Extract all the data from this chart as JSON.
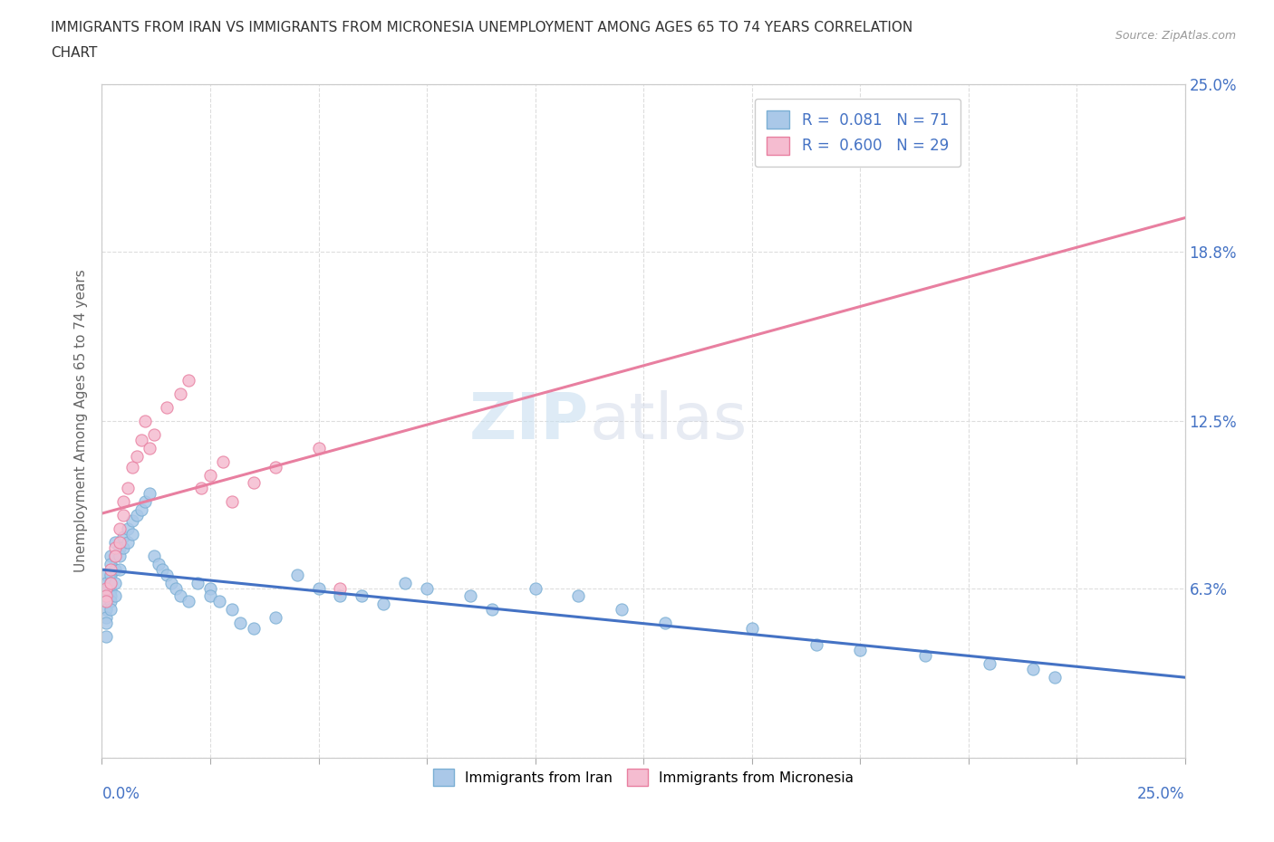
{
  "title": "IMMIGRANTS FROM IRAN VS IMMIGRANTS FROM MICRONESIA UNEMPLOYMENT AMONG AGES 65 TO 74 YEARS CORRELATION\nCHART",
  "source_text": "Source: ZipAtlas.com",
  "ylabel": "Unemployment Among Ages 65 to 74 years",
  "xmin": 0.0,
  "xmax": 0.25,
  "ymin": 0.0,
  "ymax": 0.25,
  "ytick_vals": [
    0.0,
    0.063,
    0.125,
    0.188,
    0.25
  ],
  "ytick_labels_right": [
    "",
    "6.3%",
    "12.5%",
    "18.8%",
    "25.0%"
  ],
  "iran_color": "#aac8e8",
  "iran_color_edge": "#7bafd4",
  "micronesia_color": "#f5bcd0",
  "micronesia_color_edge": "#e87fa0",
  "iran_line_color": "#4472c4",
  "micronesia_line_color": "#e87fa0",
  "iran_R": 0.081,
  "iran_N": 71,
  "micronesia_R": 0.6,
  "micronesia_N": 29,
  "watermark_zip": "ZIP",
  "watermark_atlas": "atlas",
  "background_color": "#ffffff",
  "grid_color": "#dddddd",
  "axis_label_color": "#4472c4",
  "title_color": "#333333",
  "iran_x": [
    0.001,
    0.001,
    0.001,
    0.001,
    0.001,
    0.001,
    0.001,
    0.001,
    0.001,
    0.002,
    0.002,
    0.002,
    0.002,
    0.002,
    0.002,
    0.002,
    0.002,
    0.003,
    0.003,
    0.003,
    0.003,
    0.003,
    0.004,
    0.004,
    0.004,
    0.005,
    0.005,
    0.006,
    0.006,
    0.007,
    0.007,
    0.008,
    0.009,
    0.01,
    0.011,
    0.012,
    0.013,
    0.014,
    0.015,
    0.016,
    0.017,
    0.018,
    0.02,
    0.022,
    0.025,
    0.025,
    0.027,
    0.03,
    0.032,
    0.035,
    0.04,
    0.045,
    0.05,
    0.055,
    0.06,
    0.065,
    0.07,
    0.075,
    0.085,
    0.09,
    0.1,
    0.11,
    0.12,
    0.13,
    0.15,
    0.165,
    0.175,
    0.19,
    0.205,
    0.215,
    0.22
  ],
  "iran_y": [
    0.068,
    0.065,
    0.062,
    0.06,
    0.058,
    0.055,
    0.052,
    0.05,
    0.045,
    0.075,
    0.072,
    0.068,
    0.065,
    0.062,
    0.06,
    0.058,
    0.055,
    0.08,
    0.075,
    0.07,
    0.065,
    0.06,
    0.078,
    0.075,
    0.07,
    0.082,
    0.078,
    0.085,
    0.08,
    0.088,
    0.083,
    0.09,
    0.092,
    0.095,
    0.098,
    0.075,
    0.072,
    0.07,
    0.068,
    0.065,
    0.063,
    0.06,
    0.058,
    0.065,
    0.063,
    0.06,
    0.058,
    0.055,
    0.05,
    0.048,
    0.052,
    0.068,
    0.063,
    0.06,
    0.06,
    0.057,
    0.065,
    0.063,
    0.06,
    0.055,
    0.063,
    0.06,
    0.055,
    0.05,
    0.048,
    0.042,
    0.04,
    0.038,
    0.035,
    0.033,
    0.03
  ],
  "micro_x": [
    0.001,
    0.001,
    0.001,
    0.002,
    0.002,
    0.003,
    0.003,
    0.004,
    0.004,
    0.005,
    0.005,
    0.006,
    0.007,
    0.008,
    0.009,
    0.01,
    0.011,
    0.012,
    0.015,
    0.018,
    0.02,
    0.023,
    0.025,
    0.028,
    0.03,
    0.035,
    0.04,
    0.05,
    0.055
  ],
  "micro_y": [
    0.063,
    0.06,
    0.058,
    0.07,
    0.065,
    0.078,
    0.075,
    0.085,
    0.08,
    0.095,
    0.09,
    0.1,
    0.108,
    0.112,
    0.118,
    0.125,
    0.115,
    0.12,
    0.13,
    0.135,
    0.14,
    0.1,
    0.105,
    0.11,
    0.095,
    0.102,
    0.108,
    0.115,
    0.063
  ]
}
